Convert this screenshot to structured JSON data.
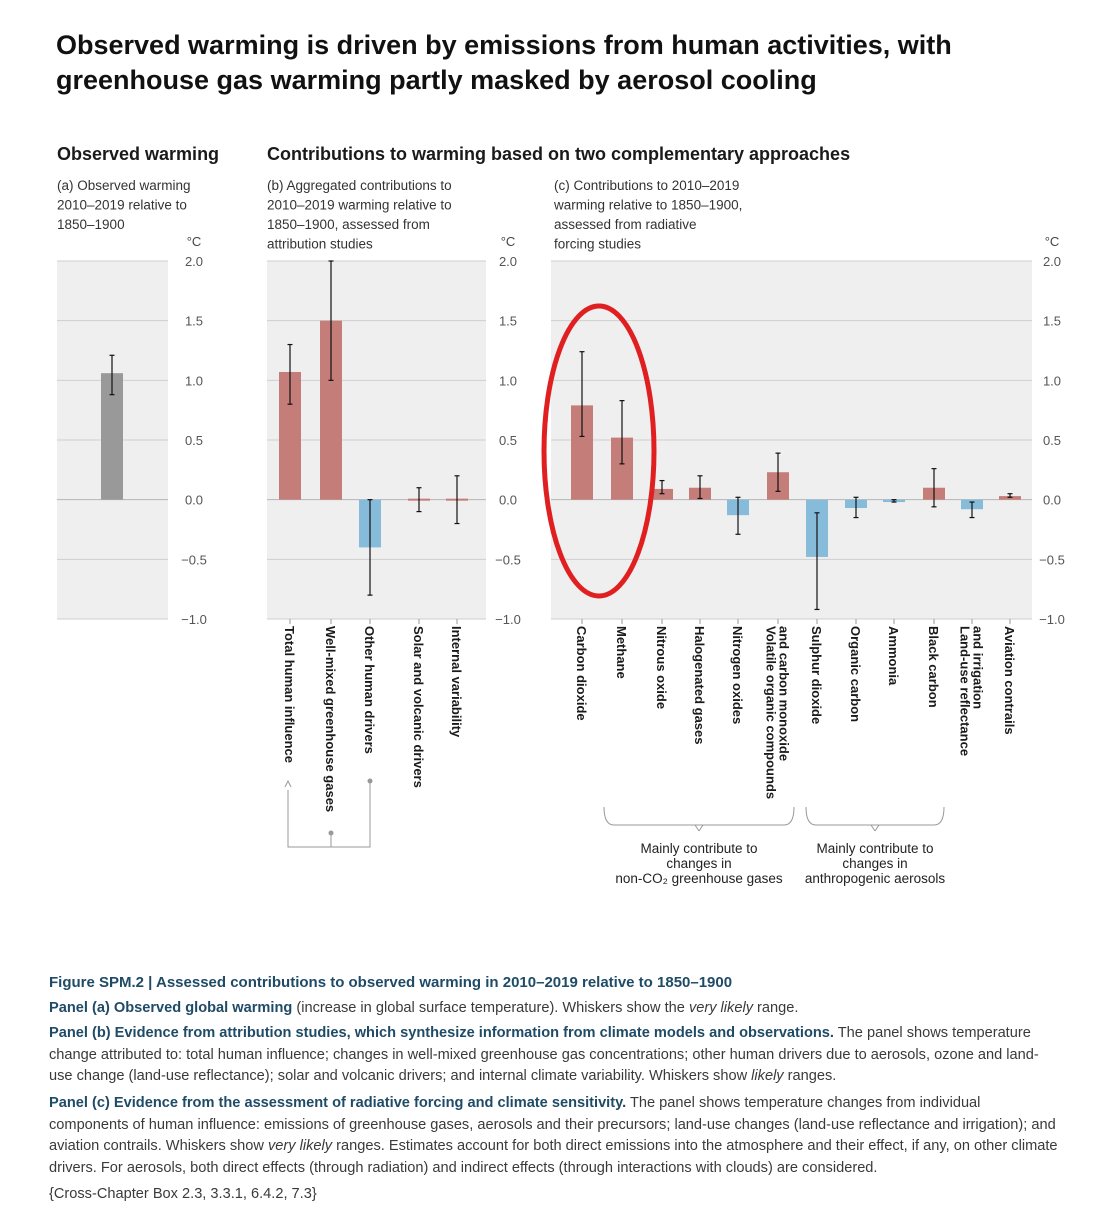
{
  "main_title": "Observed warming is driven by emissions from human activities, with greenhouse gas warming partly masked by aerosol cooling",
  "header_left": "Observed warming",
  "header_right": "Contributions to warming based on two complementary approaches",
  "unit": "°C",
  "colors": {
    "warming": "#c47d79",
    "cooling": "#86bcda",
    "observed": "#999999",
    "panel_bg": "#efefef",
    "highlight": "#e02020",
    "caption_label": "#1f4b67"
  },
  "chart_data": [
    {
      "id": "a",
      "type": "bar",
      "subtitle": [
        "(a) Observed warming",
        "2010–2019 relative to",
        "1850–1900"
      ],
      "ylabel": "°C",
      "ylim": [
        -1.0,
        2.0
      ],
      "yticks": [
        "2.0",
        "1.5",
        "1.0",
        "0.5",
        "0.0",
        "−0.5",
        "−1.0"
      ],
      "categories": [
        ""
      ],
      "values": [
        1.06
      ],
      "whiskers": [
        [
          0.88,
          1.21
        ]
      ],
      "bar_colors": [
        "observed"
      ]
    },
    {
      "id": "b",
      "type": "bar",
      "subtitle": [
        "(b) Aggregated contributions to",
        "2010–2019 warming relative to",
        "1850–1900, assessed from",
        "attribution studies"
      ],
      "ylabel": "°C",
      "ylim": [
        -1.0,
        2.0
      ],
      "yticks": [
        "2.0",
        "1.5",
        "1.0",
        "0.5",
        "0.0",
        "−0.5",
        "−1.0"
      ],
      "categories": [
        "Total human influence",
        "Well-mixed greenhouse gases",
        "Other human drivers",
        "Solar and volcanic drivers",
        "Internal variability"
      ],
      "values": [
        1.07,
        1.5,
        -0.4,
        0.0,
        0.0
      ],
      "whiskers": [
        [
          0.8,
          1.3
        ],
        [
          1.0,
          2.0
        ],
        [
          -0.8,
          0.0
        ],
        [
          -0.1,
          0.1
        ],
        [
          -0.2,
          0.2
        ]
      ],
      "bar_colors": [
        "warming",
        "warming",
        "cooling",
        "warming",
        "warming"
      ]
    },
    {
      "id": "c",
      "type": "bar",
      "subtitle": [
        "(c) Contributions to 2010–2019",
        "warming relative to 1850–1900,",
        "assessed from radiative",
        "forcing studies"
      ],
      "ylabel": "°C",
      "ylim": [
        -1.0,
        2.0
      ],
      "yticks": [
        "2.0",
        "1.5",
        "1.0",
        "0.5",
        "0.0",
        "−0.5",
        "−1.0"
      ],
      "categories": [
        "Carbon dioxide",
        "Methane",
        "Nitrous oxide",
        "Halogenated gases",
        "Nitrogen oxides",
        "Volatile organic compounds and carbon monoxide",
        "Sulphur dioxide",
        "Organic carbon",
        "Ammonia",
        "Black carbon",
        "Land-use reflectance and irrigation",
        "Aviation contrails"
      ],
      "category_lines": [
        [
          "Carbon dioxide"
        ],
        [
          "Methane"
        ],
        [
          "Nitrous oxide"
        ],
        [
          "Halogenated gases"
        ],
        [
          "Nitrogen oxides"
        ],
        [
          "Volatile organic compounds",
          "and carbon monoxide"
        ],
        [
          "Sulphur dioxide"
        ],
        [
          "Organic carbon"
        ],
        [
          "Ammonia"
        ],
        [
          "Black carbon"
        ],
        [
          "Land-use reflectance",
          "and irrigation"
        ],
        [
          "Aviation contrails"
        ]
      ],
      "values": [
        0.79,
        0.52,
        0.09,
        0.1,
        -0.13,
        0.23,
        -0.48,
        -0.07,
        -0.02,
        0.1,
        -0.08,
        0.03
      ],
      "whiskers": [
        [
          0.53,
          1.24
        ],
        [
          0.3,
          0.83
        ],
        [
          0.05,
          0.16
        ],
        [
          0.01,
          0.2
        ],
        [
          -0.29,
          0.02
        ],
        [
          0.07,
          0.39
        ],
        [
          -0.92,
          -0.11
        ],
        [
          -0.15,
          0.02
        ],
        [
          -0.02,
          0.0
        ],
        [
          -0.06,
          0.26
        ],
        [
          -0.15,
          -0.02
        ],
        [
          0.02,
          0.05
        ]
      ],
      "bar_colors": [
        "warming",
        "warming",
        "warming",
        "warming",
        "cooling",
        "warming",
        "cooling",
        "cooling",
        "cooling",
        "warming",
        "cooling",
        "warming"
      ],
      "highlighted": [
        "Carbon dioxide",
        "Methane"
      ],
      "groups": [
        {
          "label_lines": [
            "Mainly contribute to",
            "changes in",
            "non-CO₂ greenhouse gases"
          ],
          "from": 0,
          "to": 5
        },
        {
          "label_lines": [
            "Mainly contribute to",
            "changes in",
            "anthropogenic aerosols"
          ],
          "from": 6,
          "to": 9
        }
      ]
    }
  ],
  "caption": {
    "figure_title": "Figure SPM.2 | Assessed contributions to observed warming in 2010–2019 relative to 1850–1900",
    "panel_a_label": "Panel (a) Observed global warming",
    "panel_a_text1": " (increase in global surface temperature). Whiskers show the ",
    "panel_a_italic": "very likely",
    "panel_a_text2": " range.",
    "panel_b_label": "Panel (b) Evidence from attribution studies, which synthesize information from climate models and observations.",
    "panel_b_text1": " The panel shows temperature change attributed to: total human influence; changes in well-mixed greenhouse gas concentrations; other human drivers due to aerosols, ozone and land-use change (land-use reflectance); solar and volcanic drivers; and internal climate variability. Whiskers show ",
    "panel_b_italic": "likely",
    "panel_b_text2": " ranges.",
    "panel_c_label": "Panel (c) Evidence from the assessment of radiative forcing and climate sensitivity.",
    "panel_c_text1": " The panel shows temperature changes from individual components of human influence: emissions of greenhouse gases, aerosols and their precursors; land-use changes (land-use reflectance and irrigation); and aviation contrails. Whiskers show ",
    "panel_c_italic": "very likely",
    "panel_c_text2": " ranges. Estimates account for both direct emissions into the atmosphere and their effect, if any, on other climate drivers. For aerosols, both direct effects (through radiation) and indirect effects (through interactions with clouds) are considered.",
    "reference": "{Cross-Chapter Box 2.3, 3.3.1, 6.4.2, 7.3}"
  }
}
